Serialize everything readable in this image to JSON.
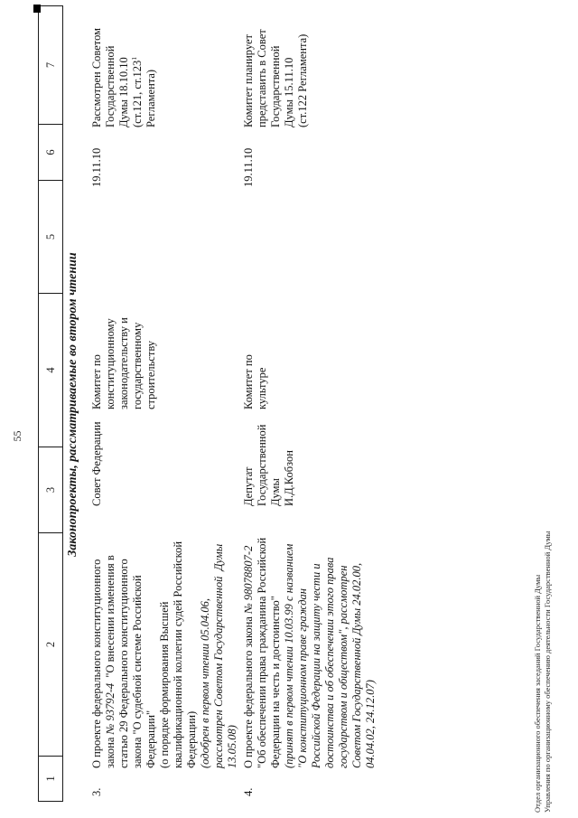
{
  "page": {
    "number": "55"
  },
  "section": {
    "heading": "Законопроекты, рассматриваемые во втором чтении"
  },
  "table": {
    "header_cells": [
      "1",
      "2",
      "3",
      "4",
      "5",
      "6",
      "7"
    ],
    "rows": [
      {
        "num": "3.",
        "col2": [
          "О проекте федерального конституционного",
          [
            {
              "t": "закона "
            },
            {
              "t": "№ 93792-4",
              "i": true
            },
            {
              "t": "  \"О внесении изменения в"
            }
          ],
          "статью 29 Федерального конституционного",
          "закона \"О судебной системе Российской",
          "Федерации\"",
          "(о порядке формирования Высшей",
          "квалификационной коллегии судей Российской",
          "Федерации)",
          [
            {
              "t": "(одобрен в первом чтении 05.04.06,",
              "i": true
            }
          ],
          [
            {
              "t": "рассмотрен Советом Государственной  Думы",
              "i": true
            }
          ],
          [
            {
              "t": "13.05.08)",
              "i": true
            }
          ]
        ],
        "col3": [
          "Совет Федерации"
        ],
        "col4": [
          "Комитет по",
          "конституционному",
          "законодательству и",
          "государственному",
          "строительству"
        ],
        "col5": [],
        "col6": [
          "19.11.10"
        ],
        "col7": [
          "Рассмотрен Советом",
          "Государственной",
          "Думы 18.10.10",
          [
            {
              "t": "(ст.121, ст.123"
            },
            {
              "t": "1",
              "sup": true
            }
          ],
          "Регламента)"
        ]
      },
      {
        "num": "4.",
        "col2": [
          [
            {
              "t": "О проекте федерального закона "
            },
            {
              "t": "№ 98078807-2",
              "i": true
            }
          ],
          "\"Об обеспечении права гражданина Российской",
          "Федерации на честь и достоинство\"",
          [
            {
              "t": "(принят в первом чтении 10.03.99 с названием",
              "i": true
            }
          ],
          [
            {
              "t": "\"О конституционном праве граждан",
              "i": true
            }
          ],
          [
            {
              "t": "Российской Федерации на защиту чести и",
              "i": true
            }
          ],
          [
            {
              "t": "достоинства и об обеспечении этого права",
              "i": true
            }
          ],
          [
            {
              "t": "государством и обществом\", рассмотрен",
              "i": true
            }
          ],
          [
            {
              "t": "Советом Государственной Думы 24.02.00,",
              "i": true
            }
          ],
          [
            {
              "t": "04.04.02, 24.12.07)",
              "i": true
            }
          ]
        ],
        "col3": [
          "Депутат",
          "Государственной",
          "Думы",
          "И.Д.Кобзон"
        ],
        "col4": [
          "Комитет по",
          "культуре"
        ],
        "col5": [],
        "col6": [
          "19.11.10"
        ],
        "col7": [
          "Комитет планирует",
          "представить в Совет",
          "Государственной",
          "Думы 15.11.10",
          "(ст.122 Регламента)"
        ]
      }
    ]
  },
  "footer": {
    "line1": "Отдел организационного обеспечения заседаний Государственной Думы",
    "line2": "Управления по организационному обеспечению деятельности Государственной Думы"
  }
}
